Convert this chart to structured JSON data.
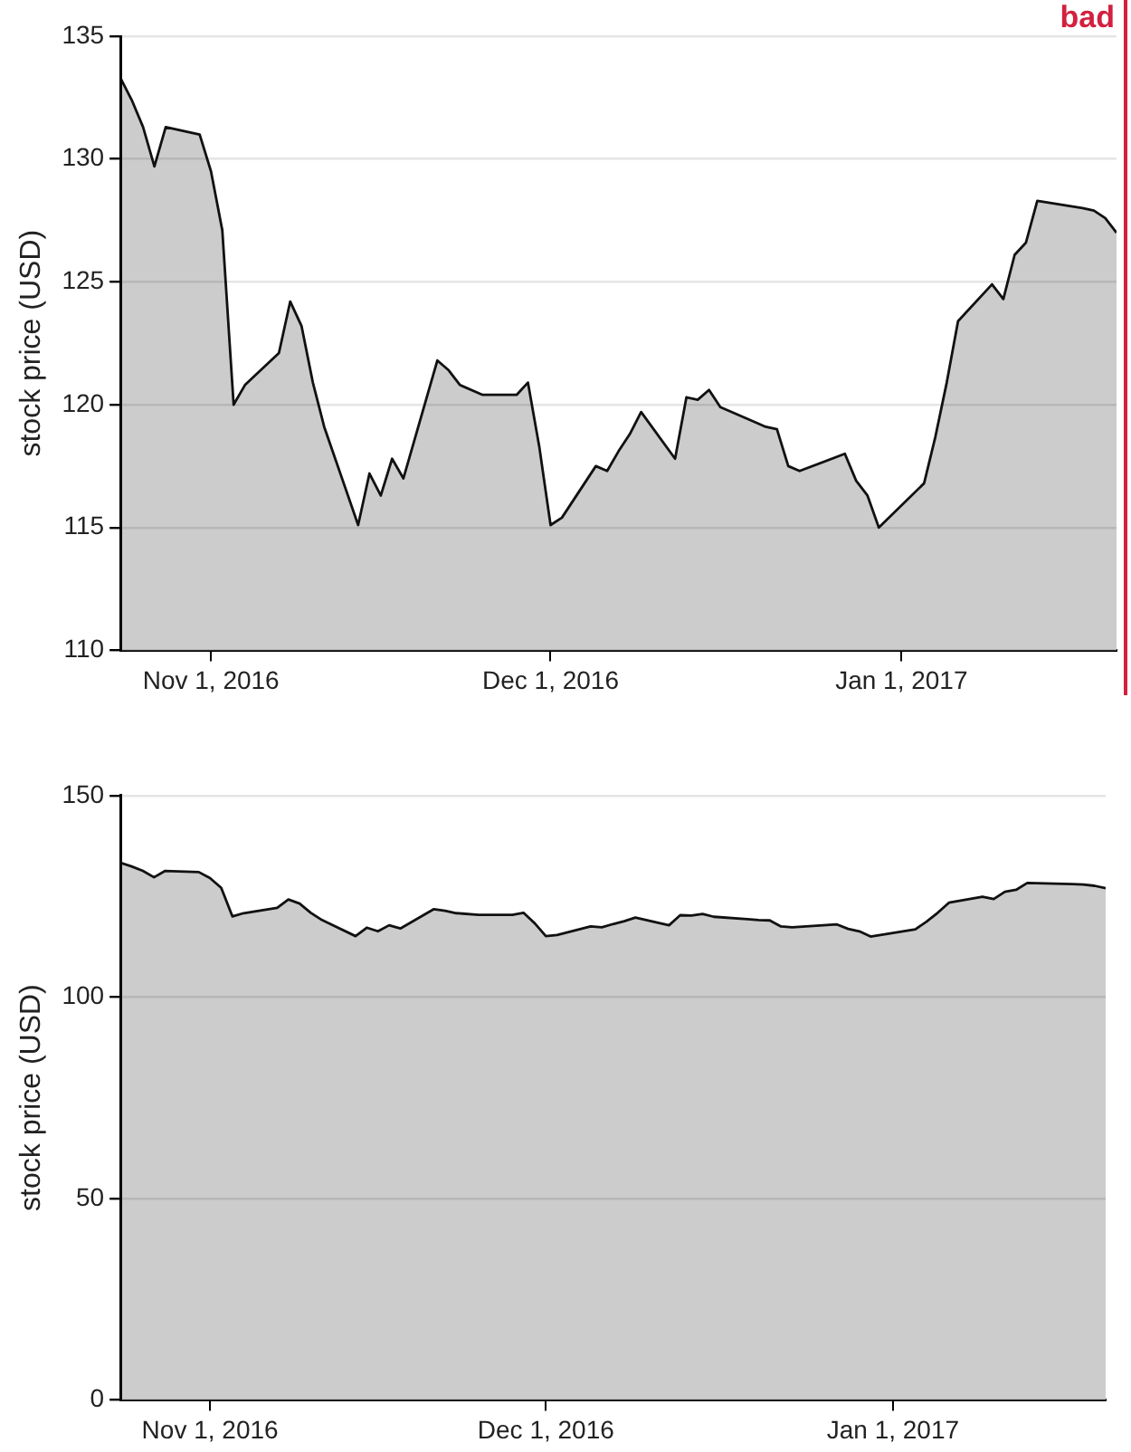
{
  "chart_data": [
    {
      "type": "area",
      "ylabel": "stock price (USD)",
      "annotations": [
        "bad"
      ],
      "grid": "y",
      "legend": false,
      "marker": "none",
      "x": [
        "2016-10-24",
        "2016-10-25",
        "2016-10-26",
        "2016-10-27",
        "2016-10-28",
        "2016-10-31",
        "2016-11-01",
        "2016-11-02",
        "2016-11-03",
        "2016-11-04",
        "2016-11-07",
        "2016-11-08",
        "2016-11-09",
        "2016-11-10",
        "2016-11-11",
        "2016-11-14",
        "2016-11-15",
        "2016-11-16",
        "2016-11-17",
        "2016-11-18",
        "2016-11-21",
        "2016-11-22",
        "2016-11-23",
        "2016-11-25",
        "2016-11-28",
        "2016-11-29",
        "2016-11-30",
        "2016-12-01",
        "2016-12-02",
        "2016-12-05",
        "2016-12-06",
        "2016-12-07",
        "2016-12-08",
        "2016-12-09",
        "2016-12-12",
        "2016-12-13",
        "2016-12-14",
        "2016-12-15",
        "2016-12-16",
        "2016-12-19",
        "2016-12-20",
        "2016-12-21",
        "2016-12-22",
        "2016-12-23",
        "2016-12-27",
        "2016-12-28",
        "2016-12-29",
        "2016-12-30",
        "2017-01-03",
        "2017-01-04",
        "2017-01-05",
        "2017-01-06",
        "2017-01-09",
        "2017-01-10",
        "2017-01-11",
        "2017-01-12",
        "2017-01-13",
        "2017-01-17",
        "2017-01-18",
        "2017-01-19",
        "2017-01-20"
      ],
      "series": [
        {
          "color": "#cccccc",
          "values": [
            133.3,
            132.4,
            131.3,
            129.7,
            131.3,
            131.0,
            129.5,
            127.1,
            120.0,
            120.8,
            122.1,
            124.2,
            123.2,
            120.9,
            119.1,
            115.1,
            117.2,
            116.3,
            117.8,
            117.0,
            121.8,
            121.4,
            120.8,
            120.4,
            120.4,
            120.9,
            118.3,
            115.1,
            115.4,
            117.5,
            117.3,
            118.1,
            118.8,
            119.7,
            117.8,
            120.3,
            120.2,
            120.6,
            119.9,
            119.3,
            119.1,
            119.0,
            117.5,
            117.3,
            118.0,
            116.9,
            116.3,
            115.0,
            116.8,
            118.7,
            120.9,
            123.4,
            124.9,
            124.3,
            126.1,
            126.6,
            128.3,
            128.0,
            127.9,
            127.6,
            127.0
          ]
        }
      ],
      "xlim": [
        "2016-10-24",
        "2017-01-20"
      ],
      "xticks": [
        {
          "value": "2016-11-01",
          "label": "Nov 1, 2016"
        },
        {
          "value": "2016-12-01",
          "label": "Dec 1, 2016"
        },
        {
          "value": "2017-01-01",
          "label": "Jan 1, 2017"
        }
      ],
      "ylim": [
        110,
        135
      ],
      "yticks": [
        110,
        115,
        120,
        125,
        130,
        135
      ]
    },
    {
      "type": "area",
      "ylabel": "stock price (USD)",
      "grid": "y",
      "legend": false,
      "marker": "none",
      "x": [
        "2016-10-24",
        "2016-10-25",
        "2016-10-26",
        "2016-10-27",
        "2016-10-28",
        "2016-10-31",
        "2016-11-01",
        "2016-11-02",
        "2016-11-03",
        "2016-11-04",
        "2016-11-07",
        "2016-11-08",
        "2016-11-09",
        "2016-11-10",
        "2016-11-11",
        "2016-11-14",
        "2016-11-15",
        "2016-11-16",
        "2016-11-17",
        "2016-11-18",
        "2016-11-21",
        "2016-11-22",
        "2016-11-23",
        "2016-11-25",
        "2016-11-28",
        "2016-11-29",
        "2016-11-30",
        "2016-12-01",
        "2016-12-02",
        "2016-12-05",
        "2016-12-06",
        "2016-12-07",
        "2016-12-08",
        "2016-12-09",
        "2016-12-12",
        "2016-12-13",
        "2016-12-14",
        "2016-12-15",
        "2016-12-16",
        "2016-12-19",
        "2016-12-20",
        "2016-12-21",
        "2016-12-22",
        "2016-12-23",
        "2016-12-27",
        "2016-12-28",
        "2016-12-29",
        "2016-12-30",
        "2017-01-03",
        "2017-01-04",
        "2017-01-05",
        "2017-01-06",
        "2017-01-09",
        "2017-01-10",
        "2017-01-11",
        "2017-01-12",
        "2017-01-13",
        "2017-01-17",
        "2017-01-18",
        "2017-01-19",
        "2017-01-20"
      ],
      "series": [
        {
          "color": "#cccccc",
          "values": [
            133.3,
            132.4,
            131.3,
            129.7,
            131.3,
            131.0,
            129.5,
            127.1,
            120.0,
            120.8,
            122.1,
            124.2,
            123.2,
            120.9,
            119.1,
            115.1,
            117.2,
            116.3,
            117.8,
            117.0,
            121.8,
            121.4,
            120.8,
            120.4,
            120.4,
            120.9,
            118.3,
            115.1,
            115.4,
            117.5,
            117.3,
            118.1,
            118.8,
            119.7,
            117.8,
            120.3,
            120.2,
            120.6,
            119.9,
            119.3,
            119.1,
            119.0,
            117.5,
            117.3,
            118.0,
            116.9,
            116.3,
            115.0,
            116.8,
            118.7,
            120.9,
            123.4,
            124.9,
            124.3,
            126.1,
            126.6,
            128.3,
            128.0,
            127.9,
            127.6,
            127.0
          ]
        }
      ],
      "xlim": [
        "2016-10-24",
        "2017-01-20"
      ],
      "xticks": [
        {
          "value": "2016-11-01",
          "label": "Nov 1, 2016"
        },
        {
          "value": "2016-12-01",
          "label": "Dec 1, 2016"
        },
        {
          "value": "2017-01-01",
          "label": "Jan 1, 2017"
        }
      ],
      "ylim": [
        0,
        150
      ],
      "yticks": [
        0,
        50,
        100,
        150
      ]
    }
  ]
}
